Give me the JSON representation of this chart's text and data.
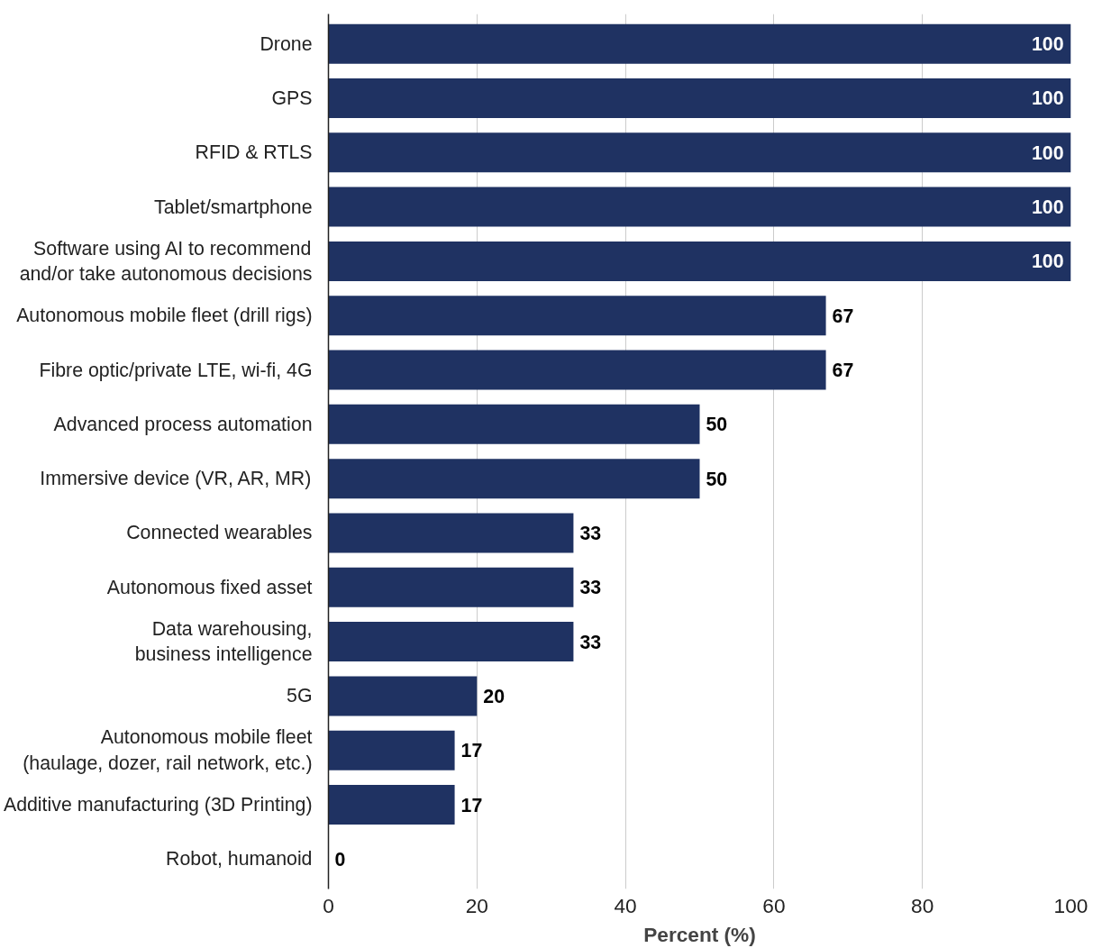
{
  "chart_data": {
    "type": "bar",
    "orientation": "horizontal",
    "categories": [
      "Drone",
      "GPS",
      "RFID & RTLS",
      "Tablet/smartphone",
      "Software using AI to recommend\nand/or take autonomous decisions",
      "Autonomous mobile fleet (drill rigs)",
      "Fibre optic/private LTE, wi-fi, 4G",
      "Advanced process automation",
      "Immersive device (VR, AR, MR)",
      "Connected wearables",
      "Autonomous fixed asset",
      "Data warehousing,\nbusiness intelligence",
      "5G",
      "Autonomous mobile fleet\n(haulage, dozer, rail network, etc.)",
      "Additive manufacturing (3D Printing)",
      "Robot, humanoid"
    ],
    "values": [
      100,
      100,
      100,
      100,
      100,
      67,
      67,
      50,
      50,
      33,
      33,
      33,
      20,
      17,
      17,
      0
    ],
    "color": "#1f3262",
    "xlabel": "Percent (%)",
    "xlim": [
      0,
      100
    ],
    "xticks": [
      0,
      20,
      40,
      60,
      80,
      100
    ],
    "grid": "x",
    "data_labels": true
  }
}
